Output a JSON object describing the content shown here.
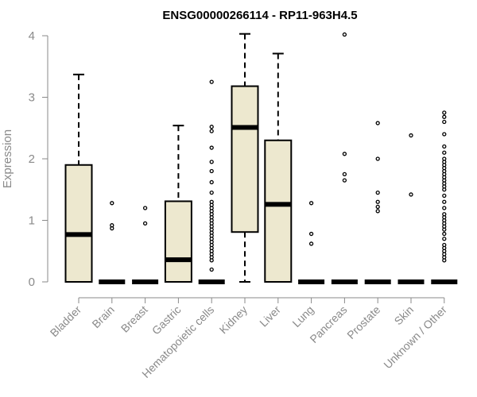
{
  "chart_data": {
    "type": "boxplot",
    "title": "ENSG00000266114 - RP11-963H4.5",
    "xlabel": "",
    "ylabel": "Expression",
    "ylim": [
      0,
      4.15
    ],
    "yticks": [
      0,
      1,
      2,
      3,
      4
    ],
    "box_color": "#ede8cf",
    "categories": [
      "Bladder",
      "Brain",
      "Breast",
      "Gastric",
      "Hematopoietic cells",
      "Kidney",
      "Liver",
      "Lung",
      "Pancreas",
      "Prostate",
      "Skin",
      "Unknown / Other"
    ],
    "boxes": [
      {
        "name": "Bladder",
        "min": 0,
        "q1": 0,
        "median": 0.77,
        "q3": 1.9,
        "max": 3.37,
        "outliers": []
      },
      {
        "name": "Brain",
        "min": 0,
        "q1": 0,
        "median": 0,
        "q3": 0,
        "max": 0,
        "outliers": [
          0.87,
          0.92,
          1.28
        ]
      },
      {
        "name": "Breast",
        "min": 0,
        "q1": 0,
        "median": 0,
        "q3": 0,
        "max": 0,
        "outliers": [
          0.95,
          1.2
        ]
      },
      {
        "name": "Gastric",
        "min": 0,
        "q1": 0,
        "median": 0.36,
        "q3": 1.31,
        "max": 2.54,
        "outliers": []
      },
      {
        "name": "Hematopoietic cells",
        "min": 0,
        "q1": 0,
        "median": 0,
        "q3": 0,
        "max": 0,
        "outliers": [
          0.2,
          0.35,
          0.4,
          0.45,
          0.5,
          0.55,
          0.6,
          0.65,
          0.7,
          0.75,
          0.8,
          0.85,
          0.9,
          0.95,
          1.0,
          1.05,
          1.1,
          1.15,
          1.2,
          1.25,
          1.3,
          1.45,
          1.62,
          1.8,
          1.95,
          2.18,
          2.45,
          2.52,
          3.25
        ]
      },
      {
        "name": "Kidney",
        "min": 0,
        "q1": 0.81,
        "median": 2.51,
        "q3": 3.18,
        "max": 4.03,
        "outliers": []
      },
      {
        "name": "Liver",
        "min": 0,
        "q1": 0,
        "median": 1.26,
        "q3": 2.3,
        "max": 3.71,
        "outliers": []
      },
      {
        "name": "Lung",
        "min": 0,
        "q1": 0,
        "median": 0,
        "q3": 0,
        "max": 0,
        "outliers": [
          0.62,
          0.78,
          1.28
        ]
      },
      {
        "name": "Pancreas",
        "min": 0,
        "q1": 0,
        "median": 0,
        "q3": 0,
        "max": 0,
        "outliers": [
          1.65,
          1.75,
          2.08,
          4.02
        ]
      },
      {
        "name": "Prostate",
        "min": 0,
        "q1": 0,
        "median": 0,
        "q3": 0,
        "max": 0,
        "outliers": [
          1.15,
          1.22,
          1.3,
          1.45,
          2.0,
          2.58
        ]
      },
      {
        "name": "Skin",
        "min": 0,
        "q1": 0,
        "median": 0,
        "q3": 0,
        "max": 0,
        "outliers": [
          1.42,
          2.38
        ]
      },
      {
        "name": "Unknown / Other",
        "min": 0,
        "q1": 0,
        "median": 0,
        "q3": 0,
        "max": 0,
        "outliers": [
          0.35,
          0.4,
          0.45,
          0.5,
          0.55,
          0.6,
          0.7,
          0.78,
          0.85,
          0.9,
          0.95,
          1.0,
          1.05,
          1.1,
          1.2,
          1.3,
          1.4,
          1.5,
          1.55,
          1.6,
          1.65,
          1.7,
          1.75,
          1.8,
          1.85,
          1.9,
          1.95,
          2.0,
          2.1,
          2.2,
          2.4,
          2.6,
          2.68,
          2.75
        ]
      }
    ]
  }
}
